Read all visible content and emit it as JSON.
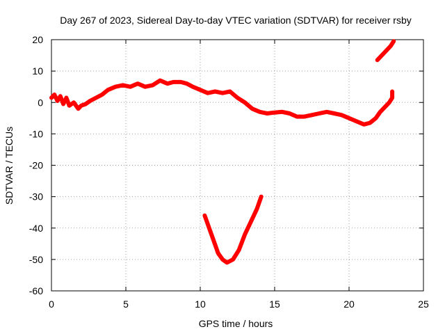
{
  "chart_data": {
    "type": "line",
    "title": "Day 267 of 2023, Sidereal Day-to-day VTEC variation (SDTVAR) for receiver rsby",
    "xlabel": "GPS time / hours",
    "ylabel": "SDTVAR / TECUs",
    "xlim": [
      0,
      25
    ],
    "ylim": [
      -60,
      20
    ],
    "xticks": [
      0,
      5,
      10,
      15,
      20,
      25
    ],
    "yticks": [
      -60,
      -50,
      -40,
      -30,
      -20,
      -10,
      0,
      10,
      20
    ],
    "grid": true,
    "series": [
      {
        "name": "SDTVAR",
        "color": "#ff0000",
        "segments": [
          [
            [
              0.0,
              1.5
            ],
            [
              0.2,
              2.5
            ],
            [
              0.4,
              0.5
            ],
            [
              0.6,
              2.0
            ],
            [
              0.8,
              -0.5
            ],
            [
              1.0,
              1.5
            ],
            [
              1.2,
              -1.0
            ],
            [
              1.5,
              0.0
            ],
            [
              1.8,
              -2.0
            ],
            [
              2.0,
              -1.0
            ],
            [
              2.3,
              -0.5
            ],
            [
              2.6,
              0.5
            ],
            [
              3.0,
              1.5
            ],
            [
              3.4,
              2.5
            ],
            [
              3.8,
              4.0
            ],
            [
              4.3,
              5.0
            ],
            [
              4.8,
              5.5
            ],
            [
              5.3,
              5.0
            ],
            [
              5.8,
              6.0
            ],
            [
              6.3,
              5.0
            ],
            [
              6.8,
              5.5
            ],
            [
              7.3,
              7.0
            ],
            [
              7.8,
              6.0
            ],
            [
              8.2,
              6.5
            ],
            [
              8.7,
              6.5
            ],
            [
              9.1,
              6.0
            ],
            [
              9.5,
              5.0
            ],
            [
              10.0,
              4.0
            ],
            [
              10.5,
              3.0
            ],
            [
              11.0,
              3.5
            ],
            [
              11.5,
              3.0
            ],
            [
              12.0,
              3.5
            ],
            [
              12.5,
              1.5
            ],
            [
              13.0,
              0.0
            ],
            [
              13.5,
              -2.0
            ],
            [
              14.0,
              -3.0
            ],
            [
              14.5,
              -3.5
            ],
            [
              15.0,
              -3.2
            ],
            [
              15.5,
              -3.0
            ],
            [
              16.0,
              -3.5
            ],
            [
              16.5,
              -4.5
            ],
            [
              17.0,
              -4.5
            ],
            [
              17.5,
              -4.0
            ],
            [
              18.0,
              -3.5
            ],
            [
              18.5,
              -3.0
            ],
            [
              19.0,
              -3.5
            ],
            [
              19.5,
              -4.0
            ],
            [
              20.0,
              -5.0
            ],
            [
              20.5,
              -6.0
            ],
            [
              21.0,
              -7.0
            ],
            [
              21.4,
              -6.5
            ],
            [
              21.8,
              -5.0
            ],
            [
              22.1,
              -3.0
            ],
            [
              22.4,
              -1.5
            ],
            [
              22.7,
              0.0
            ],
            [
              22.9,
              1.5
            ],
            [
              22.9,
              3.5
            ]
          ],
          [
            [
              10.3,
              -36
            ],
            [
              10.6,
              -40
            ],
            [
              10.9,
              -44
            ],
            [
              11.2,
              -48
            ],
            [
              11.5,
              -50
            ],
            [
              11.8,
              -51
            ],
            [
              12.2,
              -50
            ],
            [
              12.6,
              -47
            ],
            [
              13.0,
              -42
            ],
            [
              13.4,
              -38
            ],
            [
              13.8,
              -34
            ],
            [
              14.1,
              -30
            ]
          ],
          [
            [
              21.9,
              13.5
            ],
            [
              22.2,
              15.0
            ],
            [
              22.5,
              16.5
            ],
            [
              22.8,
              18.0
            ],
            [
              23.0,
              19.5
            ]
          ]
        ]
      }
    ]
  }
}
